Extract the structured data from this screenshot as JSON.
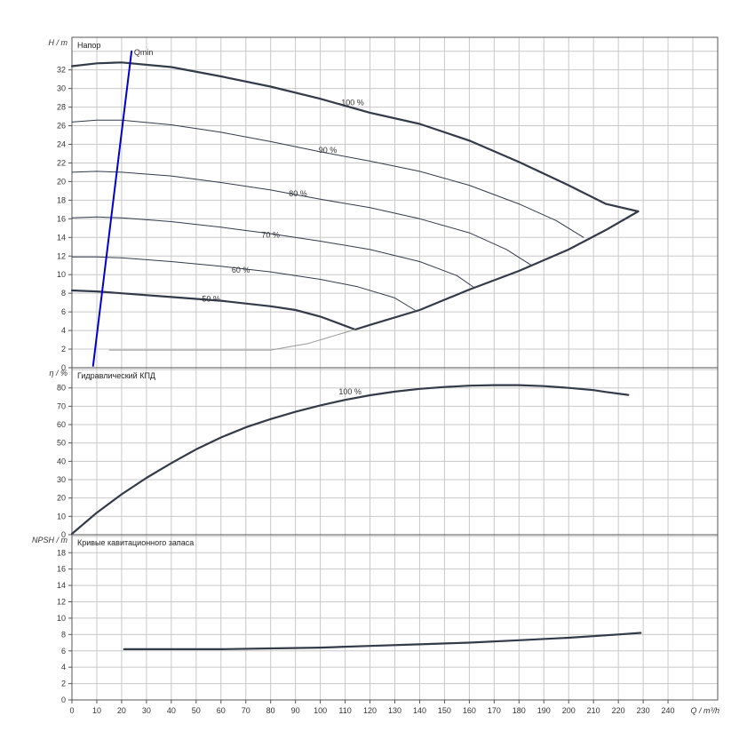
{
  "chart_data": [
    {
      "type": "line",
      "panel": "head",
      "title": "Напор",
      "y_axis_label": "H / m",
      "x_axis_label": "Q / m³/h",
      "xlim": [
        0,
        260
      ],
      "ylim": [
        0,
        35.5
      ],
      "x_ticks": [
        0,
        10,
        20,
        30,
        40,
        50,
        60,
        70,
        80,
        90,
        100,
        110,
        120,
        130,
        140,
        150,
        160,
        170,
        180,
        190,
        200,
        210,
        220,
        230,
        240
      ],
      "y_ticks": [
        0,
        2,
        4,
        6,
        8,
        10,
        12,
        14,
        16,
        18,
        20,
        22,
        24,
        26,
        28,
        30,
        32
      ],
      "grid": true,
      "series": [
        {
          "name": "100 %",
          "bold": true,
          "label_at": [
            113,
            28.2
          ],
          "points": [
            [
              0,
              32.4
            ],
            [
              10,
              32.7
            ],
            [
              20,
              32.8
            ],
            [
              40,
              32.3
            ],
            [
              60,
              31.3
            ],
            [
              80,
              30.2
            ],
            [
              100,
              28.9
            ],
            [
              120,
              27.4
            ],
            [
              140,
              26.2
            ],
            [
              160,
              24.4
            ],
            [
              180,
              22.1
            ],
            [
              200,
              19.6
            ],
            [
              215,
              17.6
            ],
            [
              228,
              16.8
            ]
          ]
        },
        {
          "name": "90 %",
          "bold": false,
          "label_at": [
            103,
            23.1
          ],
          "points": [
            [
              0,
              26.4
            ],
            [
              10,
              26.6
            ],
            [
              20,
              26.6
            ],
            [
              40,
              26.1
            ],
            [
              60,
              25.3
            ],
            [
              80,
              24.3
            ],
            [
              100,
              23.2
            ],
            [
              120,
              22.2
            ],
            [
              140,
              21.1
            ],
            [
              160,
              19.6
            ],
            [
              180,
              17.6
            ],
            [
              195,
              15.8
            ],
            [
              206,
              14.0
            ]
          ]
        },
        {
          "name": "90 %",
          "bold": false,
          "label_at": [
            102,
            23.1
          ],
          "points": []
        },
        {
          "name": "80 %",
          "bold": false,
          "label_at": [
            91,
            18.4
          ],
          "points": [
            [
              0,
              21.0
            ],
            [
              10,
              21.1
            ],
            [
              20,
              21.0
            ],
            [
              40,
              20.6
            ],
            [
              60,
              19.9
            ],
            [
              80,
              19.1
            ],
            [
              100,
              18.1
            ],
            [
              120,
              17.2
            ],
            [
              140,
              16.0
            ],
            [
              160,
              14.5
            ],
            [
              175,
              12.7
            ],
            [
              185,
              11.0
            ]
          ]
        },
        {
          "name": "70 %",
          "bold": false,
          "label_at": [
            80,
            14.0
          ],
          "points": [
            [
              0,
              16.1
            ],
            [
              10,
              16.2
            ],
            [
              20,
              16.1
            ],
            [
              40,
              15.7
            ],
            [
              60,
              15.1
            ],
            [
              80,
              14.4
            ],
            [
              100,
              13.6
            ],
            [
              120,
              12.7
            ],
            [
              140,
              11.4
            ],
            [
              155,
              9.9
            ],
            [
              162,
              8.6
            ]
          ]
        },
        {
          "name": "60 %",
          "bold": false,
          "label_at": [
            68,
            10.2
          ],
          "points": [
            [
              0,
              11.9
            ],
            [
              10,
              11.9
            ],
            [
              20,
              11.8
            ],
            [
              40,
              11.4
            ],
            [
              60,
              10.9
            ],
            [
              80,
              10.3
            ],
            [
              100,
              9.5
            ],
            [
              115,
              8.7
            ],
            [
              130,
              7.5
            ],
            [
              138,
              6.2
            ]
          ]
        },
        {
          "name": "50 %",
          "bold": true,
          "label_at": [
            56,
            7.1
          ],
          "points": [
            [
              0,
              8.3
            ],
            [
              10,
              8.2
            ],
            [
              20,
              8.0
            ],
            [
              40,
              7.6
            ],
            [
              60,
              7.2
            ],
            [
              80,
              6.6
            ],
            [
              90,
              6.2
            ],
            [
              100,
              5.5
            ],
            [
              110,
              4.5
            ],
            [
              114,
              4.1
            ]
          ]
        },
        {
          "name": "",
          "bold": true,
          "role": "right-boundary",
          "points": [
            [
              114,
              4.1
            ],
            [
              120,
              4.6
            ],
            [
              140,
              6.2
            ],
            [
              160,
              8.4
            ],
            [
              180,
              10.4
            ],
            [
              200,
              12.7
            ],
            [
              215,
              14.8
            ],
            [
              228,
              16.8
            ]
          ]
        },
        {
          "name": "",
          "bold": false,
          "role": "thin-boundary",
          "points": [
            [
              15,
              1.9
            ],
            [
              80,
              1.9
            ],
            [
              95,
              2.6
            ],
            [
              114,
              4.1
            ]
          ]
        },
        {
          "name": "Qmin",
          "bold": true,
          "role": "qmin-line",
          "color": "#0000cc",
          "label_at": [
            25,
            33.6
          ],
          "points": [
            [
              8.5,
              0.2
            ],
            [
              24,
              34.0
            ]
          ]
        }
      ]
    },
    {
      "type": "line",
      "panel": "efficiency",
      "title": "Гидравлический КПД",
      "y_axis_label": "η / %",
      "xlim": [
        0,
        260
      ],
      "ylim": [
        0,
        91
      ],
      "y_ticks": [
        0,
        10,
        20,
        30,
        40,
        50,
        60,
        70,
        80
      ],
      "grid": true,
      "series": [
        {
          "name": "100 %",
          "bold": true,
          "label_at": [
            112,
            76.5
          ],
          "points": [
            [
              0,
              0.5
            ],
            [
              10,
              12
            ],
            [
              20,
              22
            ],
            [
              30,
              31
            ],
            [
              40,
              39
            ],
            [
              50,
              46.5
            ],
            [
              60,
              53
            ],
            [
              70,
              58.5
            ],
            [
              80,
              63
            ],
            [
              90,
              67
            ],
            [
              100,
              70.5
            ],
            [
              110,
              73.5
            ],
            [
              120,
              76
            ],
            [
              130,
              78
            ],
            [
              140,
              79.5
            ],
            [
              150,
              80.5
            ],
            [
              160,
              81.2
            ],
            [
              170,
              81.5
            ],
            [
              180,
              81.5
            ],
            [
              190,
              81
            ],
            [
              200,
              80
            ],
            [
              210,
              78.8
            ],
            [
              215,
              77.8
            ],
            [
              224,
              76.2
            ]
          ]
        }
      ]
    },
    {
      "type": "line",
      "panel": "npsh",
      "title": "Кривые кавитационного запаса",
      "y_axis_label": "NPSH / m",
      "xlim": [
        0,
        260
      ],
      "ylim": [
        0,
        20.2
      ],
      "y_ticks": [
        0,
        2,
        4,
        6,
        8,
        10,
        12,
        14,
        16,
        18
      ],
      "grid": true,
      "series": [
        {
          "name": "",
          "bold": true,
          "points": [
            [
              21,
              6.2
            ],
            [
              40,
              6.2
            ],
            [
              60,
              6.2
            ],
            [
              80,
              6.3
            ],
            [
              100,
              6.4
            ],
            [
              120,
              6.6
            ],
            [
              140,
              6.8
            ],
            [
              160,
              7.0
            ],
            [
              180,
              7.3
            ],
            [
              200,
              7.6
            ],
            [
              220,
              8.0
            ],
            [
              229,
              8.2
            ]
          ]
        }
      ]
    }
  ]
}
